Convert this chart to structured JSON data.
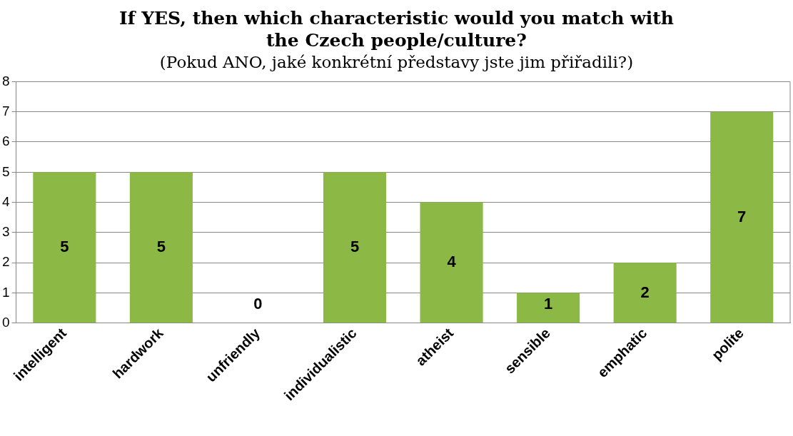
{
  "chart_data": {
    "type": "bar",
    "title": "If YES, then which characteristic would you match with the Czech people/culture?",
    "subtitle": "(Pokud ANO, jaké konkrétní představy jste jim přiřadili?)",
    "categories": [
      "intelligent",
      "hardwork",
      "unfriendly",
      "individualistic",
      "atheist",
      "sensible",
      "emphatic",
      "polite"
    ],
    "values": [
      5,
      5,
      0,
      5,
      4,
      1,
      2,
      7
    ],
    "color": "#8cb945",
    "ylim": [
      0,
      8
    ],
    "yticks": [
      0,
      1,
      2,
      3,
      4,
      5,
      6,
      7,
      8
    ],
    "grid": "y",
    "data_labels": true,
    "legend": false
  }
}
